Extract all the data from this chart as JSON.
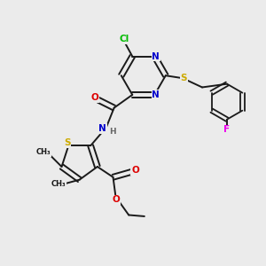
{
  "bg_color": "#ebebeb",
  "atom_colors": {
    "C": "#1a1a1a",
    "N": "#0000cc",
    "O": "#dd0000",
    "S": "#ccaa00",
    "Cl": "#00bb00",
    "F": "#ee00ee",
    "H": "#666666"
  },
  "bond_color": "#1a1a1a",
  "figsize": [
    3.0,
    3.0
  ],
  "dpi": 100
}
